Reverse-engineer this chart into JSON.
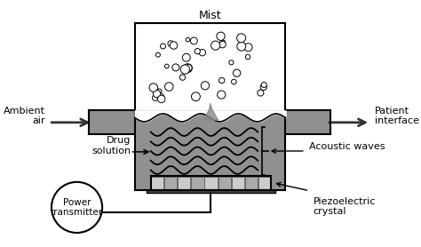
{
  "bg_color": "#ffffff",
  "labels": {
    "mist": "Mist",
    "ambient_air": "Ambient\nair",
    "patient_interface": "Patient\ninterface",
    "drug_solution": "Drug\nsolution",
    "acoustic_waves": "Acoustic waves",
    "piezoelectric": "Piezoelectric\ncrystal",
    "power_transmitter": "Power\ntransmitter"
  },
  "gray_liquid": "#909090",
  "gray_crystal": "#c8c8c8",
  "gray_dark": "#505050",
  "gray_medium": "#b0b0b0"
}
